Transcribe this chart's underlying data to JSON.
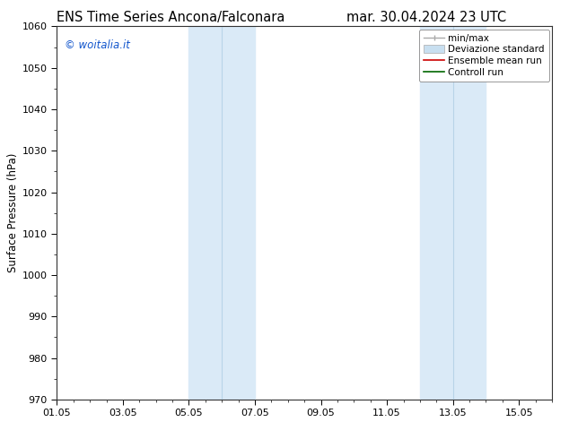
{
  "title_left": "ENS Time Series Ancona/Falconara",
  "title_right": "mar. 30.04.2024 23 UTC",
  "ylabel": "Surface Pressure (hPa)",
  "ylim": [
    970,
    1060
  ],
  "yticks": [
    970,
    980,
    990,
    1000,
    1010,
    1020,
    1030,
    1040,
    1050,
    1060
  ],
  "xtick_labels": [
    "01.05",
    "03.05",
    "05.05",
    "07.05",
    "09.05",
    "11.05",
    "13.05",
    "15.05"
  ],
  "xtick_positions": [
    0,
    2,
    4,
    6,
    8,
    10,
    12,
    14
  ],
  "xlim": [
    0,
    15
  ],
  "shading_bands": [
    {
      "x_start": 4,
      "x_end": 5,
      "mid": 4.5
    },
    {
      "x_start": 5,
      "x_end": 6,
      "mid": 5.5
    },
    {
      "x_start": 11,
      "x_end": 12,
      "mid": 11.5
    },
    {
      "x_start": 12,
      "x_end": 13,
      "mid": 12.5
    }
  ],
  "shading_color": "#daeaf7",
  "mid_line_color": "#b8d4e8",
  "watermark_text": "© woitalia.it",
  "watermark_color": "#1155cc",
  "legend_labels": [
    "min/max",
    "Deviazione standard",
    "Ensemble mean run",
    "Controll run"
  ],
  "legend_minmax_color": "#aaaaaa",
  "legend_dev_color": "#c8dff0",
  "legend_ens_color": "#cc0000",
  "legend_ctrl_color": "#006600",
  "bg_color": "#ffffff",
  "title_fontsize": 10.5,
  "ylabel_fontsize": 8.5,
  "tick_fontsize": 8,
  "legend_fontsize": 7.5
}
